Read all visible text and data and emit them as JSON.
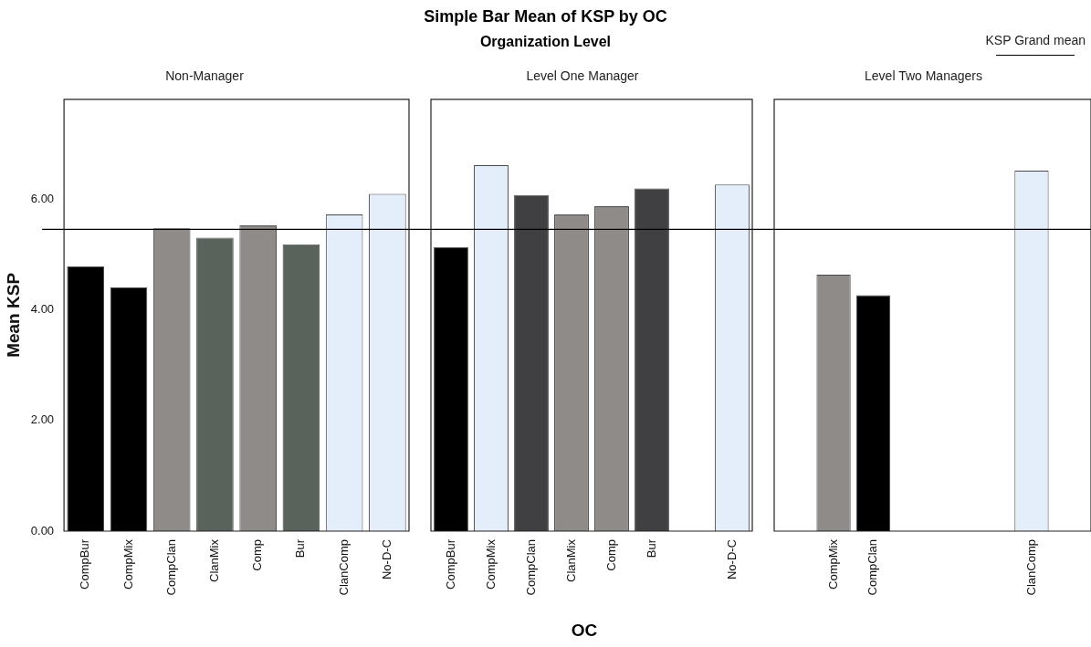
{
  "chart_data": [
    {
      "type": "bar",
      "title": "Non-Manager",
      "ylabel": "Mean KSP",
      "annotations": [
        "Simple Bar Mean of KSP by OC",
        "Organization Level"
      ],
      "categories": [
        "CompBur",
        "CompMix",
        "CompClan",
        "ClanMix",
        "Comp",
        "Bur",
        "ClanComp",
        "No-D-C"
      ],
      "values": [
        4.78,
        4.4,
        5.47,
        5.3,
        5.52,
        5.18,
        5.72,
        6.09
      ],
      "colors": [
        "#000000",
        "#000000",
        "#8f8b89",
        "#5a625c",
        "#8f8b89",
        "#5a625c",
        "#e3eefa",
        "#e3eefa"
      ],
      "ylim": [
        0,
        7.8
      ],
      "yticks": [
        {
          "value": 0,
          "label": "0.00"
        },
        {
          "value": 2,
          "label": "2.00"
        },
        {
          "value": 4,
          "label": "4.00"
        },
        {
          "value": 6,
          "label": "6.00"
        }
      ],
      "ref_lines": [
        {
          "axis": "y",
          "value": 5.45,
          "label": "KSP Grand mean",
          "color": "#000000"
        }
      ]
    },
    {
      "type": "bar",
      "title": "Level One Manager",
      "xlabel": "OC",
      "tick_labels": "x",
      "categories": [
        "CompBur",
        "CompMix",
        "CompClan",
        "ClanMix",
        "Comp",
        "Bur",
        null,
        "No-D-C"
      ],
      "values": [
        5.13,
        6.61,
        6.07,
        5.72,
        5.87,
        6.19,
        null,
        6.26
      ],
      "colors": [
        "#000000",
        "#e3eefa",
        "#404042",
        "#8f8b89",
        "#8f8b89",
        "#404042",
        "#ffffff",
        "#e3eefa"
      ],
      "ylim": [
        0,
        7.8
      ],
      "ref_lines": [
        {
          "axis": "y",
          "value": 5.45,
          "color": "#000000"
        }
      ]
    },
    {
      "type": "bar",
      "title": "Level Two Managers",
      "tick_labels": "x",
      "categories": [
        null,
        "CompMix",
        "CompClan",
        null,
        null,
        null,
        "ClanComp",
        null
      ],
      "values": [
        null,
        4.63,
        4.26,
        null,
        null,
        null,
        6.51,
        null
      ],
      "colors": [
        "#ffffff",
        "#8f8b89",
        "#000000",
        "#ffffff",
        "#ffffff",
        "#ffffff",
        "#e3eefa",
        "#ffffff"
      ],
      "ylim": [
        0,
        7.8
      ],
      "ref_lines": [
        {
          "axis": "y",
          "value": 5.45,
          "color": "#000000"
        }
      ]
    }
  ]
}
